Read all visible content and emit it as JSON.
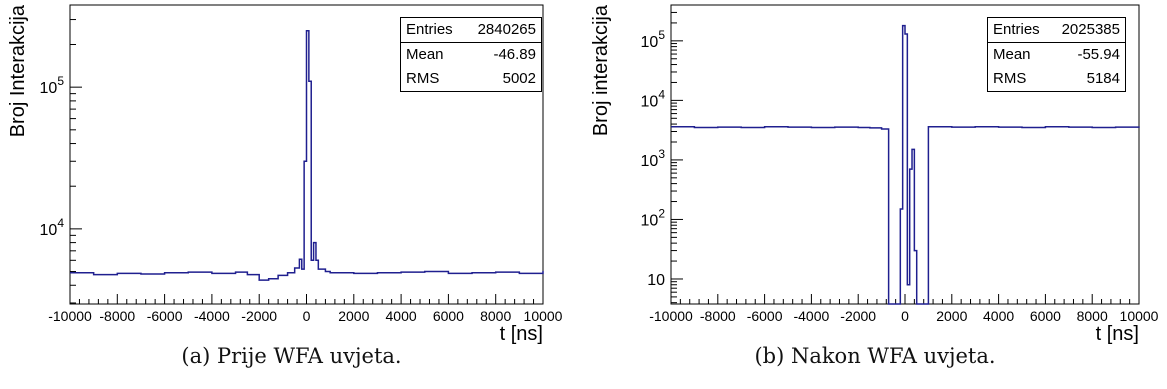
{
  "chart_data": [
    {
      "type": "step",
      "panel": "a",
      "caption": "(a) Prije WFA uvjeta.",
      "xlabel": "t [ns]",
      "ylabel": "Broj Interakcija",
      "xlim": [
        -10000,
        10000
      ],
      "ylim": [
        2950,
        380000
      ],
      "yscale": "log",
      "xticks": [
        -10000,
        -8000,
        -6000,
        -4000,
        -2000,
        0,
        2000,
        4000,
        6000,
        8000,
        10000
      ],
      "xtick_labels": [
        "-10000",
        "-8000",
        "-6000",
        "-4000",
        "-2000",
        "0",
        "2000",
        "4000",
        "6000",
        "8000",
        "10000"
      ],
      "yticks": [
        10000,
        100000
      ],
      "ytick_labels": [
        "10^4",
        "10^5"
      ],
      "line_color": "#1f1f8f",
      "stats": {
        "entries_label": "Entries",
        "entries": "2840265",
        "mean_label": "Mean",
        "mean": "-46.89",
        "rms_label": "RMS",
        "rms": "5002"
      },
      "series": {
        "x": [
          -10000,
          -9000,
          -8000,
          -7000,
          -6000,
          -5000,
          -4000,
          -3000,
          -2500,
          -2000,
          -1600,
          -1200,
          -800,
          -500,
          -300,
          -200,
          -100,
          0,
          100,
          200,
          300,
          400,
          500,
          800,
          1000,
          2000,
          3000,
          4000,
          5000,
          6000,
          7000,
          8000,
          9000,
          10000
        ],
        "y": [
          4900,
          4750,
          4850,
          4800,
          4900,
          4950,
          4850,
          4950,
          4750,
          4350,
          4450,
          4700,
          4900,
          5300,
          6100,
          5200,
          30000,
          250000,
          110000,
          6000,
          8000,
          6000,
          5200,
          5000,
          4900,
          4850,
          4900,
          4950,
          5000,
          4850,
          4900,
          4950,
          4850,
          5050
        ]
      }
    },
    {
      "type": "step",
      "panel": "b",
      "caption": "(b) Nakon WFA uvjeta.",
      "xlabel": "t [ns]",
      "ylabel": "Broj interakcija",
      "xlim": [
        -10000,
        10000
      ],
      "ylim": [
        3.8,
        400000
      ],
      "yscale": "log",
      "xticks": [
        -10000,
        -8000,
        -6000,
        -4000,
        -2000,
        0,
        2000,
        4000,
        6000,
        8000,
        10000
      ],
      "xtick_labels": [
        "-10000",
        "-8000",
        "-6000",
        "-4000",
        "-2000",
        "0",
        "2000",
        "4000",
        "6000",
        "8000",
        "10000"
      ],
      "yticks": [
        10,
        100,
        1000,
        10000,
        100000
      ],
      "ytick_labels": [
        "10",
        "10^2",
        "10^3",
        "10^4",
        "10^5"
      ],
      "line_color": "#1f1f8f",
      "stats": {
        "entries_label": "Entries",
        "entries": "2025385",
        "mean_label": "Mean",
        "mean": "-55.94",
        "rms_label": "RMS",
        "rms": "5184"
      },
      "series": {
        "x": [
          -10000,
          -9000,
          -8000,
          -7000,
          -6000,
          -5000,
          -4000,
          -3000,
          -2000,
          -1500,
          -1000,
          -700,
          -300,
          -200,
          -100,
          0,
          100,
          200,
          300,
          400,
          500,
          600,
          1000,
          2000,
          3000,
          4000,
          5000,
          6000,
          7000,
          8000,
          9000,
          10000
        ],
        "y": [
          3600,
          3500,
          3550,
          3500,
          3600,
          3550,
          3500,
          3550,
          3500,
          3450,
          3300,
          1,
          1,
          150,
          180000,
          130000,
          8,
          700,
          1500,
          30,
          1,
          1,
          3600,
          3550,
          3600,
          3550,
          3500,
          3600,
          3550,
          3500,
          3550,
          3650
        ]
      }
    }
  ]
}
